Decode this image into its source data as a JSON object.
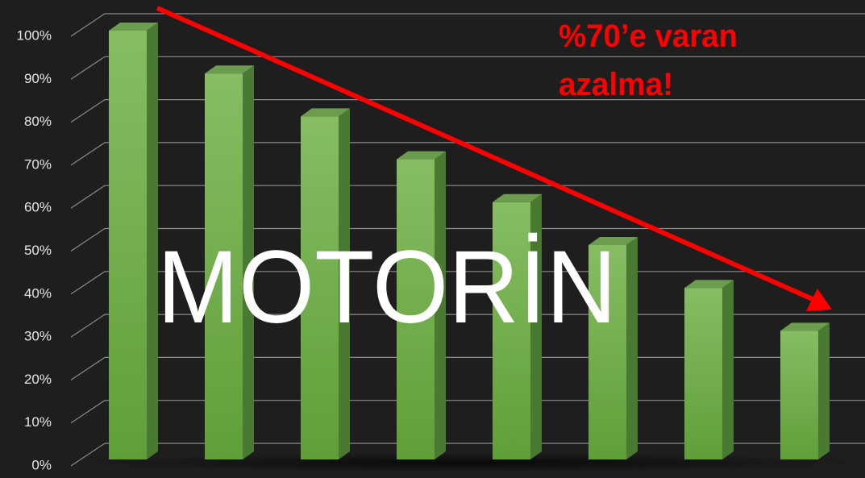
{
  "chart_data": {
    "type": "bar3d",
    "categories": [
      null,
      null,
      null,
      null,
      null,
      null,
      null,
      null
    ],
    "values": [
      100,
      90,
      80,
      70,
      60,
      50,
      40,
      30
    ],
    "color": "#6fb04a",
    "ylim": [
      0,
      100
    ],
    "yticks": [
      {
        "value": 0,
        "label": "0%"
      },
      {
        "value": 10,
        "label": "10%"
      },
      {
        "value": 20,
        "label": "20%"
      },
      {
        "value": 30,
        "label": "30%"
      },
      {
        "value": 40,
        "label": "40%"
      },
      {
        "value": 50,
        "label": "50%"
      },
      {
        "value": 60,
        "label": "60%"
      },
      {
        "value": 70,
        "label": "70%"
      },
      {
        "value": 80,
        "label": "80%"
      },
      {
        "value": 90,
        "label": "90%"
      },
      {
        "value": 100,
        "label": "100%"
      }
    ],
    "grid": true,
    "annotations": [
      "MOTORİN",
      "%70’e varan",
      "azalma!"
    ],
    "annotation_color": "#ff0000"
  }
}
